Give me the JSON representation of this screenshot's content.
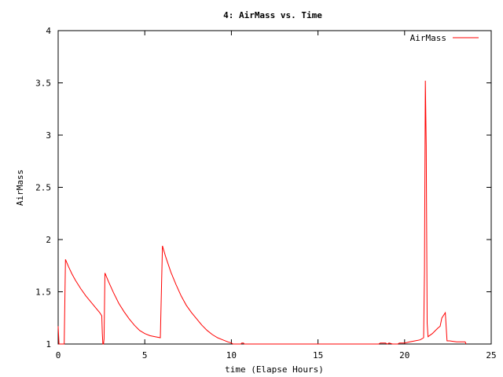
{
  "chart_data": {
    "type": "line",
    "title": "4: AirMass vs. Time",
    "xlabel": "time (Elapse Hours)",
    "ylabel": "AirMass",
    "xlim": [
      0,
      25
    ],
    "ylim": [
      1,
      4
    ],
    "xticks": [
      0,
      5,
      10,
      15,
      20,
      25
    ],
    "yticks": [
      1,
      1.5,
      2,
      2.5,
      3,
      3.5,
      4
    ],
    "ytick_labels": [
      "1",
      "1.5",
      "2",
      "2.5",
      "3",
      "3.5",
      "4"
    ],
    "grid": false,
    "legend_position": "top-right",
    "series": [
      {
        "name": "AirMass",
        "color": "#ff0000",
        "points": [
          [
            0.0,
            1.17
          ],
          [
            0.05,
            1.0
          ],
          [
            0.35,
            1.0
          ],
          [
            0.42,
            1.81
          ],
          [
            0.6,
            1.74
          ],
          [
            0.8,
            1.67
          ],
          [
            1.0,
            1.61
          ],
          [
            1.3,
            1.53
          ],
          [
            1.6,
            1.46
          ],
          [
            1.9,
            1.4
          ],
          [
            2.2,
            1.34
          ],
          [
            2.4,
            1.3
          ],
          [
            2.52,
            1.27
          ],
          [
            2.55,
            1.1
          ],
          [
            2.58,
            1.0
          ],
          [
            2.62,
            1.0
          ],
          [
            2.65,
            1.05
          ],
          [
            2.7,
            1.68
          ],
          [
            2.9,
            1.6
          ],
          [
            3.2,
            1.49
          ],
          [
            3.5,
            1.39
          ],
          [
            3.8,
            1.31
          ],
          [
            4.1,
            1.24
          ],
          [
            4.4,
            1.18
          ],
          [
            4.7,
            1.13
          ],
          [
            5.0,
            1.1
          ],
          [
            5.3,
            1.08
          ],
          [
            5.6,
            1.07
          ],
          [
            5.9,
            1.06
          ],
          [
            6.02,
            1.94
          ],
          [
            6.2,
            1.84
          ],
          [
            6.5,
            1.69
          ],
          [
            6.8,
            1.57
          ],
          [
            7.1,
            1.46
          ],
          [
            7.4,
            1.37
          ],
          [
            7.7,
            1.3
          ],
          [
            8.0,
            1.24
          ],
          [
            8.3,
            1.18
          ],
          [
            8.6,
            1.13
          ],
          [
            8.9,
            1.09
          ],
          [
            9.2,
            1.06
          ],
          [
            9.5,
            1.04
          ],
          [
            9.8,
            1.02
          ],
          [
            10.0,
            1.01
          ],
          [
            10.1,
            1.0
          ],
          [
            10.55,
            1.0
          ],
          [
            10.6,
            1.01
          ],
          [
            10.7,
            1.01
          ],
          [
            10.75,
            1.0
          ],
          [
            18.5,
            1.0
          ],
          [
            18.6,
            1.01
          ],
          [
            18.9,
            1.01
          ],
          [
            19.0,
            1.0
          ],
          [
            19.1,
            1.01
          ],
          [
            19.3,
            1.0
          ],
          [
            19.6,
            1.0
          ],
          [
            19.7,
            1.01
          ],
          [
            20.0,
            1.01
          ],
          [
            20.3,
            1.02
          ],
          [
            20.6,
            1.03
          ],
          [
            20.9,
            1.04
          ],
          [
            21.1,
            1.06
          ],
          [
            21.15,
            1.7
          ],
          [
            21.2,
            3.52
          ],
          [
            21.25,
            2.9
          ],
          [
            21.3,
            1.2
          ],
          [
            21.35,
            1.07
          ],
          [
            21.6,
            1.1
          ],
          [
            21.9,
            1.15
          ],
          [
            22.05,
            1.17
          ],
          [
            22.15,
            1.25
          ],
          [
            22.35,
            1.3
          ],
          [
            22.45,
            1.03
          ],
          [
            22.6,
            1.03
          ],
          [
            23.0,
            1.02
          ],
          [
            23.5,
            1.02
          ],
          [
            23.55,
            1.0
          ]
        ]
      }
    ]
  }
}
